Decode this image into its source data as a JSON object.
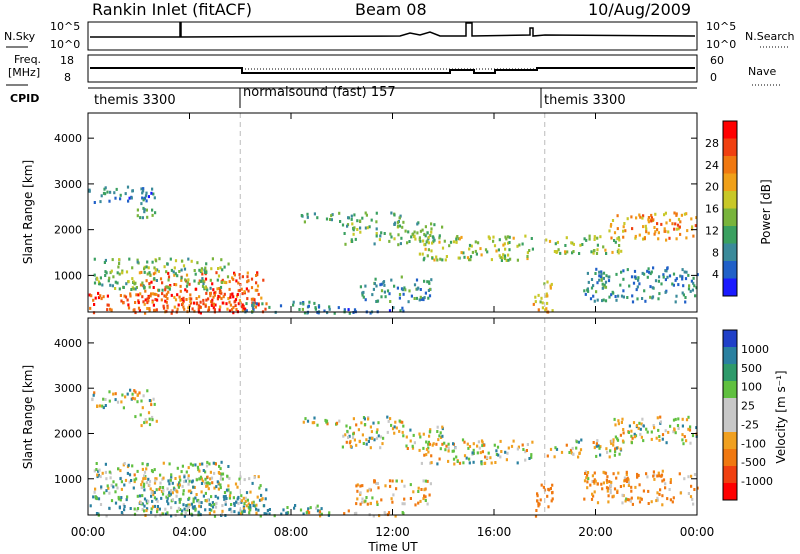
{
  "header": {
    "station": "Rankin Inlet (fitACF)",
    "beam": "Beam 08",
    "date": "10/Aug/2009"
  },
  "noise_panel": {
    "left_label": "N.Sky",
    "left_top": "10^5",
    "left_bottom": "10^0",
    "right_label": "N.Search",
    "right_top": "10^5",
    "right_bottom": "10^0"
  },
  "freq_panel": {
    "left_label": "Freq.",
    "left_unit": "[MHz]",
    "left_ticks": [
      "18",
      "8"
    ],
    "right_label": "Nave",
    "right_ticks": [
      "60",
      "0"
    ]
  },
  "cpid": {
    "label": "CPID",
    "segments": [
      {
        "start_hour": 0,
        "end_hour": 6,
        "text": "themis 3300"
      },
      {
        "start_hour": 6,
        "end_hour": 18,
        "text": "normalsound (fast) 157"
      },
      {
        "start_hour": 18,
        "end_hour": 24,
        "text": "themis 3300"
      }
    ]
  },
  "x_axis": {
    "label": "Time UT",
    "ticks": [
      "00:00",
      "04:00",
      "08:00",
      "12:00",
      "16:00",
      "20:00",
      "00:00"
    ],
    "tick_hours": [
      0,
      4,
      8,
      12,
      16,
      20,
      24
    ]
  },
  "power_panel": {
    "ylabel": "Slant Range [km]",
    "yticks": [
      "1000",
      "2000",
      "3000",
      "4000"
    ],
    "colorbar_label": "Power [dB]",
    "colorbar_ticks": [
      "28",
      "24",
      "20",
      "16",
      "12",
      "8",
      "4"
    ],
    "colors": [
      "#1a1aff",
      "#2060c8",
      "#3a8a9a",
      "#3aa060",
      "#78b43c",
      "#c8c828",
      "#f0a018",
      "#f07810",
      "#f04010",
      "#ff0000"
    ]
  },
  "velocity_panel": {
    "ylabel": "Slant Range [km]",
    "yticks": [
      "1000",
      "2000",
      "3000",
      "4000"
    ],
    "colorbar_label": "Velocity [m s⁻¹]",
    "colorbar_ticks": [
      "1000",
      "500",
      "100",
      "25",
      "-25",
      "-100",
      "-500",
      "-1000"
    ],
    "colors": [
      "#2040c8",
      "#2a80a0",
      "#2e9a6a",
      "#60c040",
      "#c8c8c8",
      "#c8c8c8",
      "#f0a020",
      "#f07810",
      "#f04010",
      "#ff0000"
    ]
  },
  "chart_data": {
    "type": "heatmap",
    "x_range_hours": [
      0,
      24
    ],
    "y_range_km": [
      200,
      4550
    ],
    "cpid_boundaries_hours": [
      6,
      18
    ],
    "scatter_regions": [
      {
        "t0": 0.0,
        "t1": 2.6,
        "r0": 2600,
        "r1": 3000,
        "power_db": 6,
        "velocity": 0
      },
      {
        "t0": 1.8,
        "t1": 2.8,
        "r0": 2200,
        "r1": 2500,
        "power_db": 9,
        "velocity": 0
      },
      {
        "t0": 0.0,
        "t1": 6.2,
        "r0": 200,
        "r1": 650,
        "power_db": 26,
        "velocity": 120
      },
      {
        "t0": 2.0,
        "t1": 7.0,
        "r0": 200,
        "r1": 1100,
        "power_db": 25,
        "velocity": 30
      },
      {
        "t0": 0.2,
        "t1": 5.5,
        "r0": 700,
        "r1": 1400,
        "power_db": 12,
        "velocity": 20
      },
      {
        "t0": 6.0,
        "t1": 9.5,
        "r0": 200,
        "r1": 450,
        "power_db": 8,
        "velocity": 150
      },
      {
        "t0": 8.5,
        "t1": 12.5,
        "r0": 200,
        "r1": 330,
        "power_db": 6,
        "velocity": -60
      },
      {
        "t0": 8.3,
        "t1": 12.5,
        "r0": 2200,
        "r1": 2400,
        "power_db": 10,
        "velocity": 0
      },
      {
        "t0": 10.0,
        "t1": 14.0,
        "r0": 1700,
        "r1": 2200,
        "power_db": 12,
        "velocity": 0
      },
      {
        "t0": 13.0,
        "t1": 17.5,
        "r0": 1350,
        "r1": 1900,
        "power_db": 14,
        "velocity": 0
      },
      {
        "t0": 10.5,
        "t1": 13.5,
        "r0": 450,
        "r1": 1000,
        "power_db": 8,
        "velocity": -80
      },
      {
        "t0": 17.5,
        "t1": 18.3,
        "r0": 200,
        "r1": 900,
        "power_db": 18,
        "velocity": -200
      },
      {
        "t0": 18.0,
        "t1": 21.0,
        "r0": 1500,
        "r1": 1900,
        "power_db": 14,
        "velocity": 0
      },
      {
        "t0": 20.5,
        "t1": 24.0,
        "r0": 1800,
        "r1": 2400,
        "power_db": 21,
        "velocity": 0
      },
      {
        "t0": 19.5,
        "t1": 24.0,
        "r0": 450,
        "r1": 1200,
        "power_db": 7,
        "velocity": -90
      }
    ]
  }
}
